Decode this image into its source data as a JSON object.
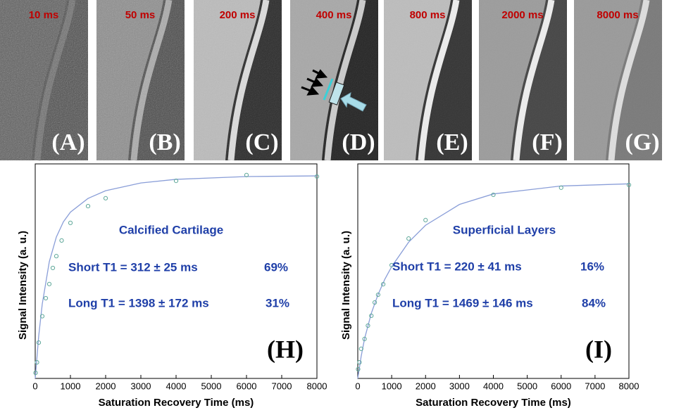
{
  "panels": [
    {
      "time": "10 ms",
      "label": "(A)"
    },
    {
      "time": "50 ms",
      "label": "(B)"
    },
    {
      "time": "200 ms",
      "label": "(C)"
    },
    {
      "time": "400 ms",
      "label": "(D)"
    },
    {
      "time": "800 ms",
      "label": "(E)"
    },
    {
      "time": "2000 ms",
      "label": "(F)"
    },
    {
      "time": "8000 ms",
      "label": "(G)"
    }
  ],
  "chart_data": [
    {
      "type": "scatter",
      "xlabel": "Saturation Recovery Time (ms)",
      "ylabel": "Signal Intensity (a. u.)",
      "annotations": [
        "Calcified Cartilage",
        "Short T1 = 312 ± 25 ms",
        "69%",
        "Long T1 = 1398 ± 172 ms",
        "31%",
        "(H)"
      ],
      "xlim": [
        0,
        8000
      ],
      "xticks": [
        0,
        1000,
        2000,
        3000,
        4000,
        5000,
        6000,
        7000,
        8000
      ],
      "ylim": [
        0,
        1
      ],
      "points": {
        "color": "#5fa89a",
        "x": [
          10,
          50,
          100,
          200,
          300,
          400,
          500,
          600,
          750,
          1000,
          1500,
          2000,
          4000,
          6000,
          8000
        ],
        "values": [
          0.026,
          0.075,
          0.167,
          0.29,
          0.374,
          0.44,
          0.515,
          0.57,
          0.643,
          0.725,
          0.803,
          0.84,
          0.921,
          0.948,
          0.941
        ]
      },
      "fit": {
        "color": "#8a9ed8",
        "x": [
          0,
          100,
          200,
          400,
          600,
          800,
          1000,
          1500,
          2000,
          3000,
          4000,
          6000,
          8000
        ],
        "values": [
          0,
          0.199,
          0.347,
          0.544,
          0.659,
          0.73,
          0.775,
          0.839,
          0.875,
          0.911,
          0.928,
          0.941,
          0.944
        ]
      }
    },
    {
      "type": "scatter",
      "xlabel": "Saturation Recovery Time (ms)",
      "ylabel": "Signal Intensity (a. u.)",
      "annotations": [
        "Superficial Layers",
        "Short T1 = 220 ± 41 ms",
        "16%",
        "Long T1 = 1469 ± 146 ms",
        "84%",
        "(I)"
      ],
      "xlim": [
        0,
        8000
      ],
      "xticks": [
        0,
        1000,
        2000,
        3000,
        4000,
        5000,
        6000,
        7000,
        8000
      ],
      "ylim": [
        0,
        1
      ],
      "points": {
        "color": "#5fa89a",
        "x": [
          10,
          50,
          100,
          200,
          300,
          400,
          500,
          600,
          750,
          1000,
          1500,
          2000,
          4000,
          6000,
          8000
        ],
        "values": [
          0.043,
          0.075,
          0.138,
          0.184,
          0.246,
          0.292,
          0.354,
          0.39,
          0.439,
          0.528,
          0.652,
          0.738,
          0.856,
          0.889,
          0.902
        ]
      },
      "fit": {
        "color": "#8a9ed8",
        "x": [
          0,
          100,
          200,
          400,
          600,
          800,
          1000,
          1500,
          2000,
          3000,
          4000,
          6000,
          8000
        ],
        "values": [
          0,
          0.103,
          0.185,
          0.304,
          0.392,
          0.463,
          0.521,
          0.635,
          0.714,
          0.811,
          0.86,
          0.897,
          0.907
        ]
      }
    }
  ]
}
